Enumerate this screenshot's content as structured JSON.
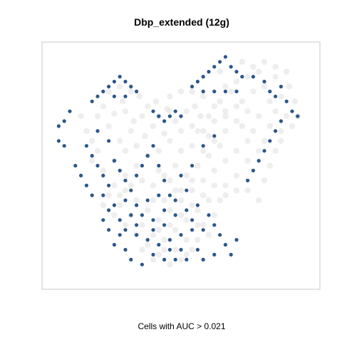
{
  "chart_data": {
    "type": "scatter",
    "title": "Dbp_extended (12g)",
    "xlabel": "Cells with AUC > 0.021",
    "ylabel": "",
    "grid": false,
    "legend": "none",
    "colors": {
      "background_cells": "#d9d9d9",
      "high_auc_cells": "#1f4e85",
      "frame": "#c8c8c8"
    },
    "xlim": [
      0,
      100
    ],
    "ylim": [
      0,
      100
    ],
    "series": [
      {
        "role": "background",
        "points": [
          [
            14,
            70
          ],
          [
            16,
            64
          ],
          [
            18,
            60
          ],
          [
            20,
            70
          ],
          [
            22,
            74
          ],
          [
            24,
            66
          ],
          [
            26,
            71
          ],
          [
            28,
            60
          ],
          [
            29,
            76
          ],
          [
            30,
            72
          ],
          [
            32,
            64
          ],
          [
            33,
            68
          ],
          [
            35,
            78
          ],
          [
            36,
            70
          ],
          [
            37,
            62
          ],
          [
            38,
            74
          ],
          [
            40,
            66
          ],
          [
            41,
            76
          ],
          [
            42,
            70
          ],
          [
            44,
            63
          ],
          [
            45,
            73
          ],
          [
            46,
            78
          ],
          [
            48,
            68
          ],
          [
            50,
            64
          ],
          [
            52,
            72
          ],
          [
            54,
            66
          ],
          [
            55,
            74
          ],
          [
            57,
            70
          ],
          [
            58,
            78
          ],
          [
            60,
            62
          ],
          [
            62,
            68
          ],
          [
            64,
            76
          ],
          [
            66,
            72
          ],
          [
            68,
            80
          ],
          [
            70,
            84
          ],
          [
            72,
            76
          ],
          [
            74,
            86
          ],
          [
            76,
            80
          ],
          [
            78,
            88
          ],
          [
            80,
            82
          ],
          [
            82,
            76
          ],
          [
            84,
            86
          ],
          [
            86,
            78
          ],
          [
            88,
            70
          ],
          [
            89,
            82
          ],
          [
            90,
            66
          ],
          [
            86,
            64
          ],
          [
            82,
            66
          ],
          [
            78,
            70
          ],
          [
            74,
            72
          ],
          [
            70,
            68
          ],
          [
            66,
            64
          ],
          [
            62,
            60
          ],
          [
            58,
            56
          ],
          [
            54,
            58
          ],
          [
            50,
            56
          ],
          [
            46,
            60
          ],
          [
            42,
            56
          ],
          [
            38,
            54
          ],
          [
            34,
            50
          ],
          [
            30,
            46
          ],
          [
            26,
            42
          ],
          [
            24,
            38
          ],
          [
            22,
            34
          ],
          [
            26,
            30
          ],
          [
            30,
            26
          ],
          [
            34,
            22
          ],
          [
            38,
            18
          ],
          [
            42,
            14
          ],
          [
            46,
            10
          ],
          [
            50,
            12
          ],
          [
            54,
            16
          ],
          [
            56,
            20
          ],
          [
            58,
            26
          ],
          [
            62,
            30
          ],
          [
            64,
            36
          ],
          [
            66,
            42
          ],
          [
            70,
            46
          ],
          [
            74,
            40
          ],
          [
            78,
            36
          ],
          [
            80,
            44
          ],
          [
            82,
            50
          ],
          [
            84,
            56
          ],
          [
            78,
            56
          ],
          [
            74,
            52
          ],
          [
            70,
            56
          ],
          [
            66,
            52
          ],
          [
            62,
            48
          ],
          [
            58,
            44
          ],
          [
            54,
            40
          ],
          [
            50,
            36
          ],
          [
            46,
            32
          ],
          [
            42,
            28
          ],
          [
            38,
            32
          ],
          [
            34,
            36
          ],
          [
            30,
            40
          ],
          [
            40,
            42
          ],
          [
            44,
            46
          ],
          [
            48,
            50
          ],
          [
            52,
            46
          ],
          [
            56,
            50
          ],
          [
            60,
            54
          ],
          [
            36,
            26
          ],
          [
            40,
            22
          ],
          [
            44,
            20
          ],
          [
            48,
            24
          ],
          [
            52,
            28
          ],
          [
            56,
            32
          ],
          [
            60,
            36
          ],
          [
            48,
            40
          ],
          [
            44,
            36
          ],
          [
            52,
            20
          ],
          [
            40,
            36
          ],
          [
            32,
            30
          ],
          [
            28,
            34
          ],
          [
            64,
            88
          ],
          [
            66,
            82
          ],
          [
            72,
            92
          ],
          [
            76,
            90
          ],
          [
            80,
            92
          ],
          [
            84,
            90
          ],
          [
            88,
            88
          ],
          [
            91,
            76
          ],
          [
            92,
            70
          ],
          [
            70,
            74
          ],
          [
            60,
            70
          ],
          [
            56,
            64
          ],
          [
            20,
            56
          ],
          [
            18,
            52
          ],
          [
            22,
            48
          ],
          [
            26,
            52
          ],
          [
            30,
            56
          ],
          [
            34,
            58
          ],
          [
            24,
            80
          ],
          [
            28,
            82
          ],
          [
            32,
            80
          ],
          [
            46,
            72
          ],
          [
            50,
            80
          ],
          [
            54,
            80
          ],
          [
            62,
            74
          ],
          [
            66,
            70
          ],
          [
            72,
            66
          ],
          [
            76,
            64
          ],
          [
            84,
            72
          ],
          [
            86,
            60
          ],
          [
            80,
            60
          ],
          [
            74,
            60
          ],
          [
            58,
            64
          ],
          [
            64,
            58
          ],
          [
            36,
            44
          ],
          [
            42,
            48
          ],
          [
            46,
            44
          ],
          [
            50,
            40
          ],
          [
            54,
            44
          ],
          [
            58,
            38
          ],
          [
            62,
            42
          ],
          [
            66,
            38
          ],
          [
            70,
            40
          ],
          [
            54,
            34
          ],
          [
            50,
            30
          ],
          [
            46,
            26
          ],
          [
            42,
            24
          ],
          [
            36,
            16
          ],
          [
            40,
            12
          ],
          [
            44,
            16
          ],
          [
            48,
            16
          ],
          [
            52,
            14
          ],
          [
            56,
            26
          ],
          [
            60,
            22
          ],
          [
            28,
            38
          ],
          [
            32,
            42
          ]
        ]
      },
      {
        "role": "auc-above-threshold",
        "name": "",
        "points": [
          [
            56,
            84
          ],
          [
            58,
            86
          ],
          [
            60,
            88
          ],
          [
            62,
            90
          ],
          [
            64,
            92
          ],
          [
            66,
            94
          ],
          [
            68,
            90
          ],
          [
            70,
            88
          ],
          [
            72,
            86
          ],
          [
            66,
            80
          ],
          [
            62,
            80
          ],
          [
            58,
            80
          ],
          [
            54,
            82
          ],
          [
            18,
            76
          ],
          [
            20,
            78
          ],
          [
            22,
            80
          ],
          [
            24,
            82
          ],
          [
            26,
            84
          ],
          [
            28,
            86
          ],
          [
            30,
            84
          ],
          [
            32,
            82
          ],
          [
            34,
            80
          ],
          [
            26,
            78
          ],
          [
            30,
            78
          ],
          [
            40,
            72
          ],
          [
            42,
            70
          ],
          [
            44,
            68
          ],
          [
            46,
            70
          ],
          [
            48,
            72
          ],
          [
            50,
            70
          ],
          [
            6,
            66
          ],
          [
            8,
            68
          ],
          [
            10,
            72
          ],
          [
            6,
            60
          ],
          [
            8,
            58
          ],
          [
            16,
            58
          ],
          [
            18,
            54
          ],
          [
            20,
            50
          ],
          [
            22,
            46
          ],
          [
            24,
            42
          ],
          [
            26,
            52
          ],
          [
            28,
            48
          ],
          [
            30,
            44
          ],
          [
            32,
            40
          ],
          [
            34,
            46
          ],
          [
            36,
            50
          ],
          [
            38,
            54
          ],
          [
            40,
            58
          ],
          [
            42,
            50
          ],
          [
            44,
            44
          ],
          [
            46,
            38
          ],
          [
            30,
            36
          ],
          [
            34,
            34
          ],
          [
            36,
            30
          ],
          [
            40,
            28
          ],
          [
            44,
            32
          ],
          [
            48,
            36
          ],
          [
            52,
            32
          ],
          [
            54,
            28
          ],
          [
            58,
            24
          ],
          [
            60,
            30
          ],
          [
            62,
            26
          ],
          [
            64,
            22
          ],
          [
            66,
            18
          ],
          [
            68,
            14
          ],
          [
            70,
            20
          ],
          [
            62,
            14
          ],
          [
            58,
            12
          ],
          [
            56,
            16
          ],
          [
            52,
            12
          ],
          [
            48,
            12
          ],
          [
            44,
            12
          ],
          [
            40,
            14
          ],
          [
            36,
            10
          ],
          [
            32,
            12
          ],
          [
            30,
            16
          ],
          [
            28,
            22
          ],
          [
            24,
            24
          ],
          [
            22,
            28
          ],
          [
            26,
            18
          ],
          [
            34,
            22
          ],
          [
            38,
            20
          ],
          [
            42,
            18
          ],
          [
            46,
            20
          ],
          [
            50,
            22
          ],
          [
            54,
            24
          ],
          [
            46,
            16
          ],
          [
            50,
            16
          ],
          [
            40,
            24
          ],
          [
            34,
            26
          ],
          [
            32,
            30
          ],
          [
            56,
            34
          ],
          [
            52,
            40
          ],
          [
            48,
            30
          ],
          [
            44,
            26
          ],
          [
            70,
            80
          ],
          [
            76,
            86
          ],
          [
            80,
            84
          ],
          [
            82,
            80
          ],
          [
            84,
            78
          ],
          [
            86,
            82
          ],
          [
            88,
            76
          ],
          [
            90,
            72
          ],
          [
            92,
            70
          ],
          [
            86,
            68
          ],
          [
            84,
            64
          ],
          [
            82,
            60
          ],
          [
            80,
            56
          ],
          [
            78,
            52
          ],
          [
            74,
            44
          ],
          [
            76,
            48
          ],
          [
            20,
            64
          ],
          [
            24,
            60
          ],
          [
            12,
            50
          ],
          [
            14,
            46
          ],
          [
            16,
            42
          ],
          [
            18,
            38
          ],
          [
            22,
            38
          ],
          [
            26,
            34
          ],
          [
            28,
            28
          ],
          [
            30,
            24
          ],
          [
            24,
            32
          ],
          [
            38,
            36
          ],
          [
            42,
            38
          ],
          [
            50,
            46
          ],
          [
            54,
            50
          ],
          [
            58,
            58
          ],
          [
            62,
            62
          ]
        ]
      }
    ]
  }
}
